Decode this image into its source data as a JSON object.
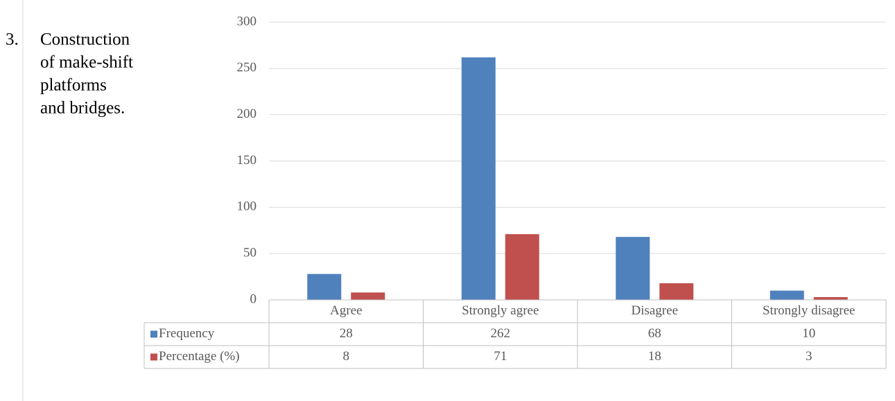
{
  "side_note": {
    "number": "3.",
    "lines": [
      "Construction",
      "of make-shift",
      "platforms",
      "and bridges."
    ]
  },
  "chart_data": {
    "type": "bar",
    "categories": [
      "Agree",
      "Strongly agree",
      "Disagree",
      "Strongly disagree"
    ],
    "series": [
      {
        "name": "Frequency",
        "color": "#4f81bd",
        "values": [
          28,
          262,
          68,
          10
        ]
      },
      {
        "name": "Percentage (%)",
        "color": "#c0504d",
        "values": [
          8,
          71,
          18,
          3
        ]
      }
    ],
    "ylim": [
      0,
      300
    ],
    "yticks": [
      0,
      50,
      100,
      150,
      200,
      250,
      300
    ],
    "grid": true,
    "data_table": true
  }
}
